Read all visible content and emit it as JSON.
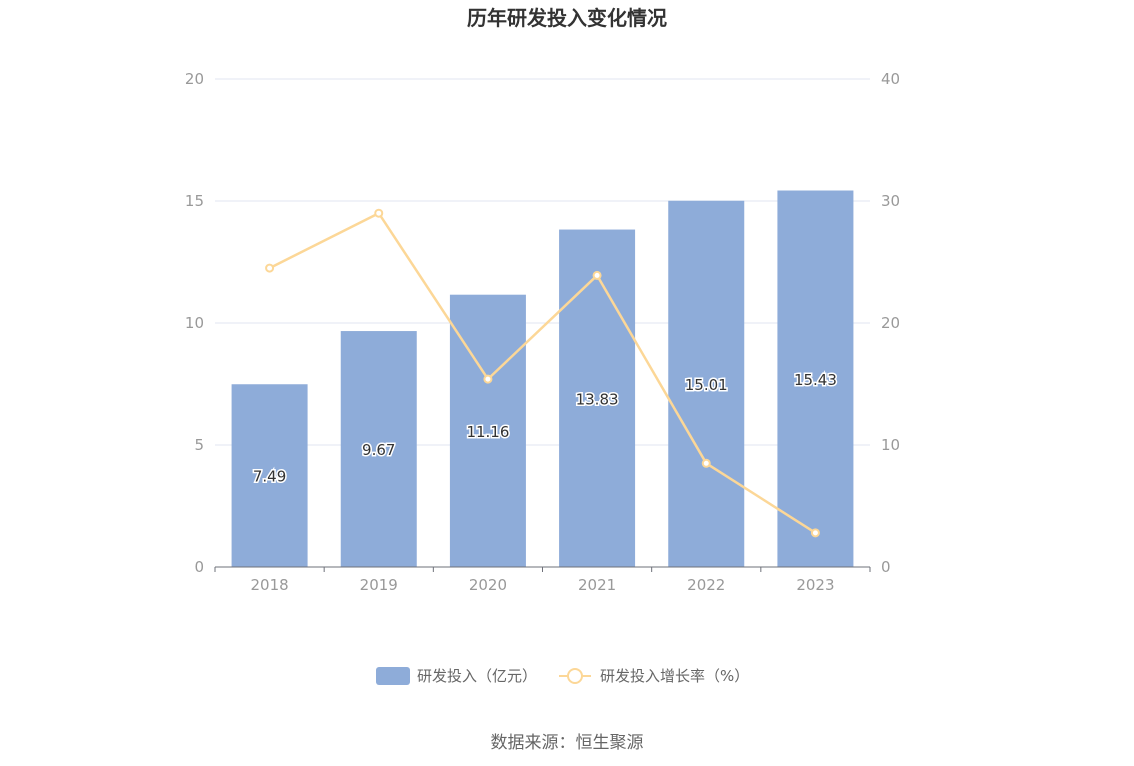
{
  "chart_data": {
    "type": "bar",
    "title": "历年研发投入变化情况",
    "categories": [
      "2018",
      "2019",
      "2020",
      "2021",
      "2022",
      "2023"
    ],
    "series": [
      {
        "name": "研发投入（亿元）",
        "type": "bar",
        "axis": "left",
        "color": "#8eacd9",
        "values": [
          7.49,
          9.67,
          11.16,
          13.83,
          15.01,
          15.43
        ],
        "labels": [
          "7.49",
          "9.67",
          "11.16",
          "13.83",
          "15.01",
          "15.43"
        ]
      },
      {
        "name": "研发投入增长率（%）",
        "type": "line",
        "axis": "right",
        "color": "#fcd797",
        "values": [
          24.5,
          29.0,
          15.4,
          23.9,
          8.5,
          2.8
        ]
      }
    ],
    "y_left": {
      "min": 0,
      "max": 20,
      "ticks": [
        "0",
        "5",
        "10",
        "15",
        "20"
      ]
    },
    "y_right": {
      "min": 0,
      "max": 40,
      "ticks": [
        "0",
        "10",
        "20",
        "30",
        "40"
      ]
    },
    "grid": true,
    "legend": "bottom-center"
  },
  "source": "数据来源：恒生聚源"
}
